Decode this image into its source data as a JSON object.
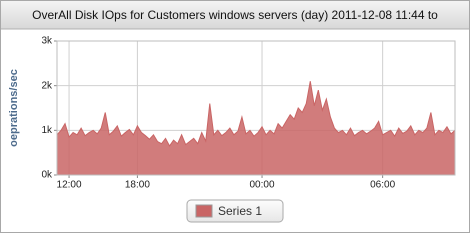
{
  "chart_data": {
    "type": "area",
    "title": "OverAll Disk IOps for Customers windows servers (day) 2011-12-08 11:44 to",
    "y_label": "oeprations/sec",
    "x": [
      0,
      1,
      2,
      3,
      4,
      5,
      6,
      7,
      8,
      9,
      10,
      11,
      12,
      13,
      14,
      15,
      16,
      17,
      18,
      19,
      20,
      21,
      22,
      23,
      24,
      25,
      26,
      27,
      28,
      29,
      30,
      31,
      32,
      33,
      34,
      35,
      36,
      37,
      38,
      39,
      40,
      41,
      42,
      43,
      44,
      45,
      46,
      47,
      48,
      49,
      50,
      51,
      52,
      53,
      54,
      55,
      56,
      57,
      58,
      59,
      60,
      61,
      62,
      63,
      64,
      65,
      66,
      67,
      68,
      69,
      70,
      71,
      72,
      73,
      74,
      75,
      76,
      77,
      78,
      79,
      80,
      81,
      82,
      83,
      84,
      85,
      86,
      87,
      88,
      89,
      90,
      91,
      92,
      93,
      94,
      95,
      96,
      97,
      98,
      99
    ],
    "series": [
      {
        "name": "Series 1",
        "color": "#c96565",
        "values": [
          900,
          1000,
          1150,
          850,
          950,
          900,
          1050,
          880,
          950,
          1000,
          920,
          1050,
          1400,
          900,
          980,
          1100,
          870,
          950,
          1020,
          900,
          1100,
          950,
          880,
          800,
          900,
          750,
          700,
          820,
          650,
          780,
          700,
          900,
          680,
          750,
          820,
          700,
          950,
          760,
          1600,
          900,
          1000,
          880,
          950,
          1050,
          900,
          980,
          1300,
          920,
          1000,
          870,
          950,
          1080,
          900,
          1000,
          920,
          1150,
          1050,
          1200,
          1350,
          1250,
          1500,
          1400,
          1600,
          2100,
          1550,
          1900,
          1450,
          1700,
          1300,
          1050,
          950,
          1000,
          900,
          1050,
          880,
          950,
          1000,
          920,
          980,
          1050,
          1200,
          900,
          950,
          1000,
          870,
          1050,
          930,
          980,
          1100,
          900,
          1000,
          950,
          1050,
          1400,
          900,
          1000,
          950,
          1080,
          920,
          1000
        ]
      }
    ],
    "xlim": [
      0,
      99
    ],
    "xticks": [
      {
        "value": 3,
        "label": "12:00"
      },
      {
        "value": 20,
        "label": "18:00"
      },
      {
        "value": 51,
        "label": "00:00"
      },
      {
        "value": 81,
        "label": "06:00"
      }
    ],
    "ylim": [
      0,
      3000
    ],
    "yticks": [
      {
        "value": 0,
        "label": "0k"
      },
      {
        "value": 1000,
        "label": "1k"
      },
      {
        "value": 2000,
        "label": "2k"
      },
      {
        "value": 3000,
        "label": "3k"
      }
    ],
    "grid": true,
    "legend": "bottom"
  }
}
